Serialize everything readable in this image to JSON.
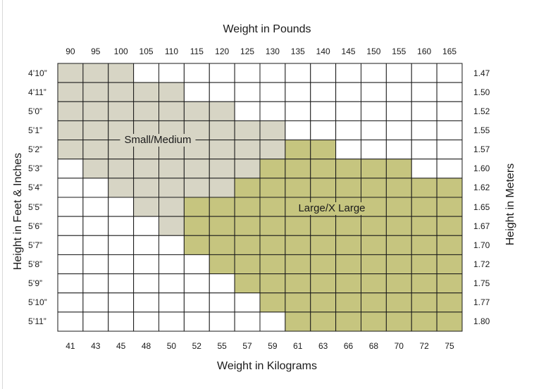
{
  "chart_data": {
    "type": "heatmap",
    "title": "",
    "top_axis_label": "Weight in Pounds",
    "bottom_axis_label": "Weight in Kilograms",
    "left_axis_label": "Height in Feet & Inches",
    "right_axis_label": "Height in Meters",
    "pounds": [
      "90",
      "95",
      "100",
      "105",
      "110",
      "115",
      "120",
      "125",
      "130",
      "135",
      "140",
      "145",
      "150",
      "155",
      "160",
      "165"
    ],
    "kilograms": [
      "41",
      "43",
      "45",
      "48",
      "50",
      "52",
      "55",
      "57",
      "59",
      "61",
      "63",
      "66",
      "68",
      "70",
      "72",
      "75"
    ],
    "heights_ft_in": [
      "4’10”",
      "4’11”",
      "5’0”",
      "5’1”",
      "5’2”",
      "5’3”",
      "5’4”",
      "5’5”",
      "5’6”",
      "5’7”",
      "5’8”",
      "5’9”",
      "5’10”",
      "5’11”"
    ],
    "heights_m": [
      "1.47",
      "1.50",
      "1.52",
      "1.55",
      "1.57",
      "1.60",
      "1.62",
      "1.65",
      "1.67",
      "1.70",
      "1.72",
      "1.75",
      "1.77",
      "1.80"
    ],
    "size_labels": [
      "Small/Medium",
      "Large/X Large"
    ],
    "colors": {
      "S": "#d7d5c5",
      "L": "#c6c57f",
      "empty": "#ffffff",
      "grid": "#1a1a1a"
    },
    "cells": [
      "SSS.............",
      "SSSSS...........",
      "SSSSSSS.........",
      "SSSSSSSSS.......",
      "SSSSSSSSSLL.....",
      ".SSSSSSSLLLLLL..",
      "..SSSSSLLLLLLLLL",
      "...SSLLLLLLLLLLL",
      "....SLLLLLLLLLLL",
      ".....LLLLLLLLLLL",
      "......LLLLLLLLLL",
      ".......LLLLLLLLL",
      "........LLLLLLLL",
      ".........LLLLLLL"
    ]
  }
}
